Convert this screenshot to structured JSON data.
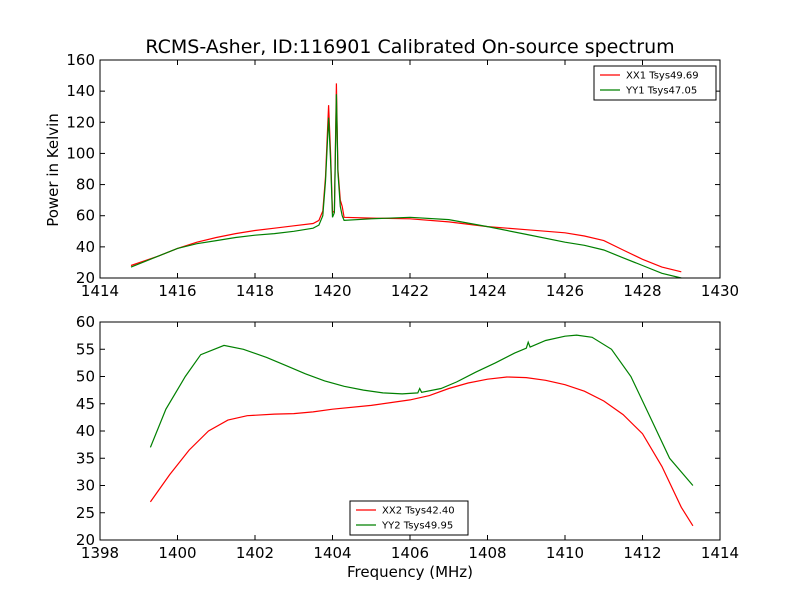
{
  "figure": {
    "title": "RCMS-Asher, ID:116901 Calibrated On-source spectrum",
    "ylabel": "Power in Kelvin",
    "xlabel": "Frequency (MHz)"
  },
  "chart_data": [
    {
      "type": "line",
      "xlabel": "",
      "ylabel": "Power in Kelvin",
      "xlim": [
        1414,
        1430
      ],
      "ylim": [
        20,
        160
      ],
      "xticks": [
        1414,
        1416,
        1418,
        1420,
        1422,
        1424,
        1426,
        1428,
        1430
      ],
      "yticks": [
        20,
        40,
        60,
        80,
        100,
        120,
        140,
        160
      ],
      "grid": false,
      "legend_position": "top-right",
      "series": [
        {
          "name": "XX1 Tsys49.69",
          "color": "#ff0000",
          "points": [
            [
              1414.8,
              28
            ],
            [
              1415.5,
              34
            ],
            [
              1416,
              39
            ],
            [
              1416.5,
              43
            ],
            [
              1417,
              46
            ],
            [
              1417.5,
              48.5
            ],
            [
              1418,
              50.5
            ],
            [
              1418.5,
              52
            ],
            [
              1419,
              53.5
            ],
            [
              1419.5,
              55
            ],
            [
              1419.65,
              57
            ],
            [
              1419.75,
              63
            ],
            [
              1419.82,
              85
            ],
            [
              1419.9,
              131
            ],
            [
              1419.95,
              100
            ],
            [
              1420.0,
              62
            ],
            [
              1420.05,
              63
            ],
            [
              1420.1,
              145
            ],
            [
              1420.14,
              90
            ],
            [
              1420.2,
              70
            ],
            [
              1420.25,
              66
            ],
            [
              1420.3,
              59
            ],
            [
              1421,
              58.5
            ],
            [
              1422,
              58
            ],
            [
              1423,
              56
            ],
            [
              1424,
              53
            ],
            [
              1425,
              51
            ],
            [
              1426,
              49
            ],
            [
              1426.5,
              47
            ],
            [
              1427,
              44
            ],
            [
              1427.5,
              38
            ],
            [
              1428,
              32
            ],
            [
              1428.5,
              27
            ],
            [
              1429,
              24
            ]
          ]
        },
        {
          "name": "YY1 Tsys47.05",
          "color": "#008000",
          "points": [
            [
              1414.8,
              27
            ],
            [
              1415.5,
              34
            ],
            [
              1416,
              39
            ],
            [
              1416.5,
              42
            ],
            [
              1417,
              44
            ],
            [
              1417.5,
              46
            ],
            [
              1418,
              47.5
            ],
            [
              1418.5,
              48.5
            ],
            [
              1419,
              50
            ],
            [
              1419.5,
              52
            ],
            [
              1419.65,
              54
            ],
            [
              1419.75,
              60
            ],
            [
              1419.82,
              82
            ],
            [
              1419.9,
              123
            ],
            [
              1419.95,
              95
            ],
            [
              1420.0,
              59
            ],
            [
              1420.05,
              62
            ],
            [
              1420.1,
              138
            ],
            [
              1420.14,
              88
            ],
            [
              1420.2,
              66
            ],
            [
              1420.25,
              60
            ],
            [
              1420.3,
              57
            ],
            [
              1421,
              58
            ],
            [
              1422,
              59
            ],
            [
              1423,
              57.5
            ],
            [
              1424,
              53
            ],
            [
              1425,
              48
            ],
            [
              1426,
              43
            ],
            [
              1426.5,
              41
            ],
            [
              1427,
              38
            ],
            [
              1427.5,
              33
            ],
            [
              1428,
              28
            ],
            [
              1428.5,
              23
            ],
            [
              1429,
              20
            ]
          ]
        }
      ]
    },
    {
      "type": "line",
      "xlabel": "Frequency (MHz)",
      "ylabel": "",
      "xlim": [
        1398,
        1414
      ],
      "ylim": [
        20,
        60
      ],
      "xticks": [
        1398,
        1400,
        1402,
        1404,
        1406,
        1408,
        1410,
        1412,
        1414
      ],
      "yticks": [
        20,
        25,
        30,
        35,
        40,
        45,
        50,
        55,
        60
      ],
      "grid": false,
      "legend_position": "bottom-center",
      "series": [
        {
          "name": "XX2 Tsys42.40",
          "color": "#ff0000",
          "points": [
            [
              1399.3,
              27
            ],
            [
              1399.8,
              32
            ],
            [
              1400.3,
              36.5
            ],
            [
              1400.8,
              40
            ],
            [
              1401.3,
              42
            ],
            [
              1401.8,
              42.8
            ],
            [
              1402.5,
              43.1
            ],
            [
              1403,
              43.2
            ],
            [
              1403.5,
              43.5
            ],
            [
              1404,
              44
            ],
            [
              1405,
              44.7
            ],
            [
              1406,
              45.7
            ],
            [
              1406.5,
              46.5
            ],
            [
              1407,
              47.8
            ],
            [
              1407.5,
              48.8
            ],
            [
              1408,
              49.5
            ],
            [
              1408.5,
              49.9
            ],
            [
              1409,
              49.8
            ],
            [
              1409.5,
              49.3
            ],
            [
              1410,
              48.5
            ],
            [
              1410.5,
              47.3
            ],
            [
              1411,
              45.5
            ],
            [
              1411.5,
              43
            ],
            [
              1412,
              39.5
            ],
            [
              1412.5,
              33.5
            ],
            [
              1413,
              26
            ],
            [
              1413.3,
              22.6
            ]
          ]
        },
        {
          "name": "YY2 Tsys49.95",
          "color": "#008000",
          "points": [
            [
              1399.3,
              37
            ],
            [
              1399.7,
              44
            ],
            [
              1400.2,
              50
            ],
            [
              1400.6,
              54
            ],
            [
              1401.2,
              55.7
            ],
            [
              1401.7,
              55
            ],
            [
              1402.3,
              53.5
            ],
            [
              1402.8,
              52
            ],
            [
              1403.3,
              50.5
            ],
            [
              1403.8,
              49.2
            ],
            [
              1404.3,
              48.2
            ],
            [
              1404.8,
              47.5
            ],
            [
              1405.3,
              47
            ],
            [
              1405.8,
              46.8
            ],
            [
              1406.2,
              47
            ],
            [
              1406.25,
              47.8
            ],
            [
              1406.3,
              47.1
            ],
            [
              1406.8,
              47.8
            ],
            [
              1407.2,
              49
            ],
            [
              1407.7,
              50.8
            ],
            [
              1408.2,
              52.5
            ],
            [
              1408.7,
              54.3
            ],
            [
              1409,
              55.2
            ],
            [
              1409.05,
              56.3
            ],
            [
              1409.1,
              55.4
            ],
            [
              1409.5,
              56.6
            ],
            [
              1410,
              57.4
            ],
            [
              1410.3,
              57.6
            ],
            [
              1410.7,
              57.2
            ],
            [
              1411.2,
              55
            ],
            [
              1411.7,
              50
            ],
            [
              1412.2,
              42.5
            ],
            [
              1412.7,
              35
            ],
            [
              1413.3,
              30
            ]
          ]
        }
      ]
    }
  ]
}
